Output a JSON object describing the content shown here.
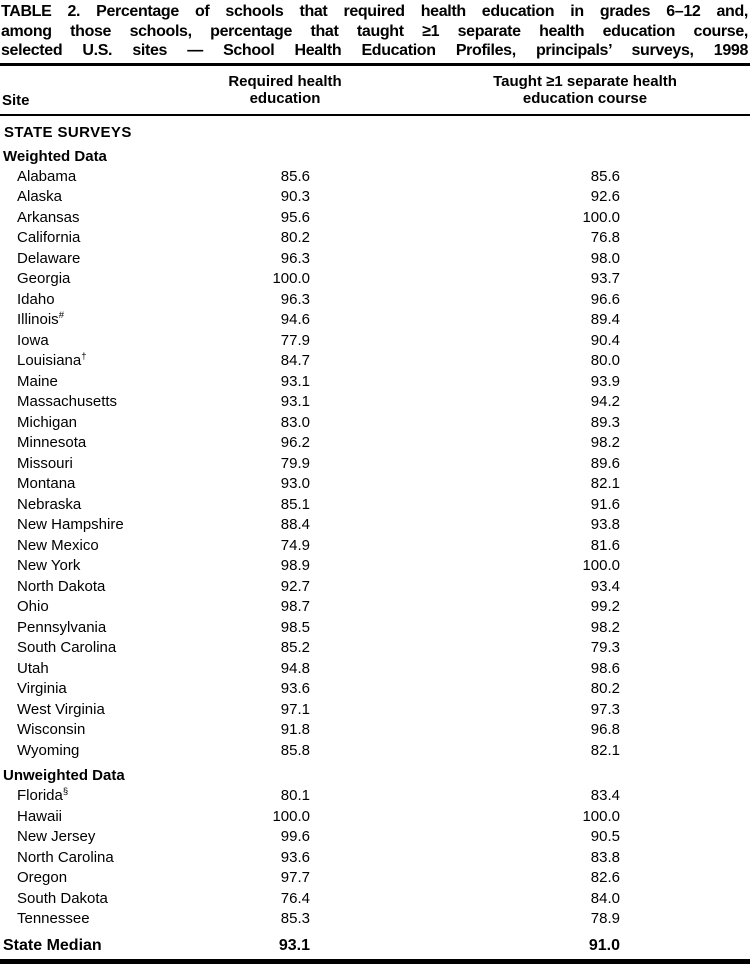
{
  "table": {
    "title_lines": [
      "TABLE 2. Percentage of schools that required health education in grades 6–12 and,",
      "among those schools, percentage that taught ≥1 separate health education course,",
      "selected U.S. sites — School Health Education Profiles, principals’ surveys, 1998"
    ],
    "header": {
      "site": "Site",
      "required_line1": "Required health",
      "required_line2": "education",
      "taught_line1": "Taught ≥1 separate health",
      "taught_line2": "education course"
    },
    "section_header": "STATE SURVEYS",
    "groups": [
      {
        "label": "Weighted Data",
        "rows": [
          {
            "site": "Alabama",
            "sup": "",
            "required": "85.6",
            "taught": "85.6"
          },
          {
            "site": "Alaska",
            "sup": "",
            "required": "90.3",
            "taught": "92.6"
          },
          {
            "site": "Arkansas",
            "sup": "",
            "required": "95.6",
            "taught": "100.0"
          },
          {
            "site": "California",
            "sup": "",
            "required": "80.2",
            "taught": "76.8"
          },
          {
            "site": "Delaware",
            "sup": "",
            "required": "96.3",
            "taught": "98.0"
          },
          {
            "site": "Georgia",
            "sup": "",
            "required": "100.0",
            "taught": "93.7"
          },
          {
            "site": "Idaho",
            "sup": "",
            "required": "96.3",
            "taught": "96.6"
          },
          {
            "site": "Illinois",
            "sup": "#",
            "required": "94.6",
            "taught": "89.4"
          },
          {
            "site": "Iowa",
            "sup": "",
            "required": "77.9",
            "taught": "90.4"
          },
          {
            "site": "Louisiana",
            "sup": "†",
            "required": "84.7",
            "taught": "80.0"
          },
          {
            "site": "Maine",
            "sup": "",
            "required": "93.1",
            "taught": "93.9"
          },
          {
            "site": "Massachusetts",
            "sup": "",
            "required": "93.1",
            "taught": "94.2"
          },
          {
            "site": "Michigan",
            "sup": "",
            "required": "83.0",
            "taught": "89.3"
          },
          {
            "site": "Minnesota",
            "sup": "",
            "required": "96.2",
            "taught": "98.2"
          },
          {
            "site": "Missouri",
            "sup": "",
            "required": "79.9",
            "taught": "89.6"
          },
          {
            "site": "Montana",
            "sup": "",
            "required": "93.0",
            "taught": "82.1"
          },
          {
            "site": "Nebraska",
            "sup": "",
            "required": "85.1",
            "taught": "91.6"
          },
          {
            "site": "New Hampshire",
            "sup": "",
            "required": "88.4",
            "taught": "93.8"
          },
          {
            "site": "New Mexico",
            "sup": "",
            "required": "74.9",
            "taught": "81.6"
          },
          {
            "site": "New York",
            "sup": "",
            "required": "98.9",
            "taught": "100.0"
          },
          {
            "site": "North Dakota",
            "sup": "",
            "required": "92.7",
            "taught": "93.4"
          },
          {
            "site": "Ohio",
            "sup": "",
            "required": "98.7",
            "taught": "99.2"
          },
          {
            "site": "Pennsylvania",
            "sup": "",
            "required": "98.5",
            "taught": "98.2"
          },
          {
            "site": "South Carolina",
            "sup": "",
            "required": "85.2",
            "taught": "79.3"
          },
          {
            "site": "Utah",
            "sup": "",
            "required": "94.8",
            "taught": "98.6"
          },
          {
            "site": "Virginia",
            "sup": "",
            "required": "93.6",
            "taught": "80.2"
          },
          {
            "site": "West Virginia",
            "sup": "",
            "required": "97.1",
            "taught": "97.3"
          },
          {
            "site": "Wisconsin",
            "sup": "",
            "required": "91.8",
            "taught": "96.8"
          },
          {
            "site": "Wyoming",
            "sup": "",
            "required": "85.8",
            "taught": "82.1"
          }
        ]
      },
      {
        "label": "Unweighted Data",
        "rows": [
          {
            "site": "Florida",
            "sup": "§",
            "required": "80.1",
            "taught": "83.4"
          },
          {
            "site": "Hawaii",
            "sup": "",
            "required": "100.0",
            "taught": "100.0"
          },
          {
            "site": "New Jersey",
            "sup": "",
            "required": "99.6",
            "taught": "90.5"
          },
          {
            "site": "North Carolina",
            "sup": "",
            "required": "93.6",
            "taught": "83.8"
          },
          {
            "site": "Oregon",
            "sup": "",
            "required": "97.7",
            "taught": "82.6"
          },
          {
            "site": "South Dakota",
            "sup": "",
            "required": "76.4",
            "taught": "84.0"
          },
          {
            "site": "Tennessee",
            "sup": "",
            "required": "85.3",
            "taught": "78.9"
          }
        ]
      }
    ],
    "median": {
      "label": "State Median",
      "required": "93.1",
      "taught": "91.0"
    }
  }
}
